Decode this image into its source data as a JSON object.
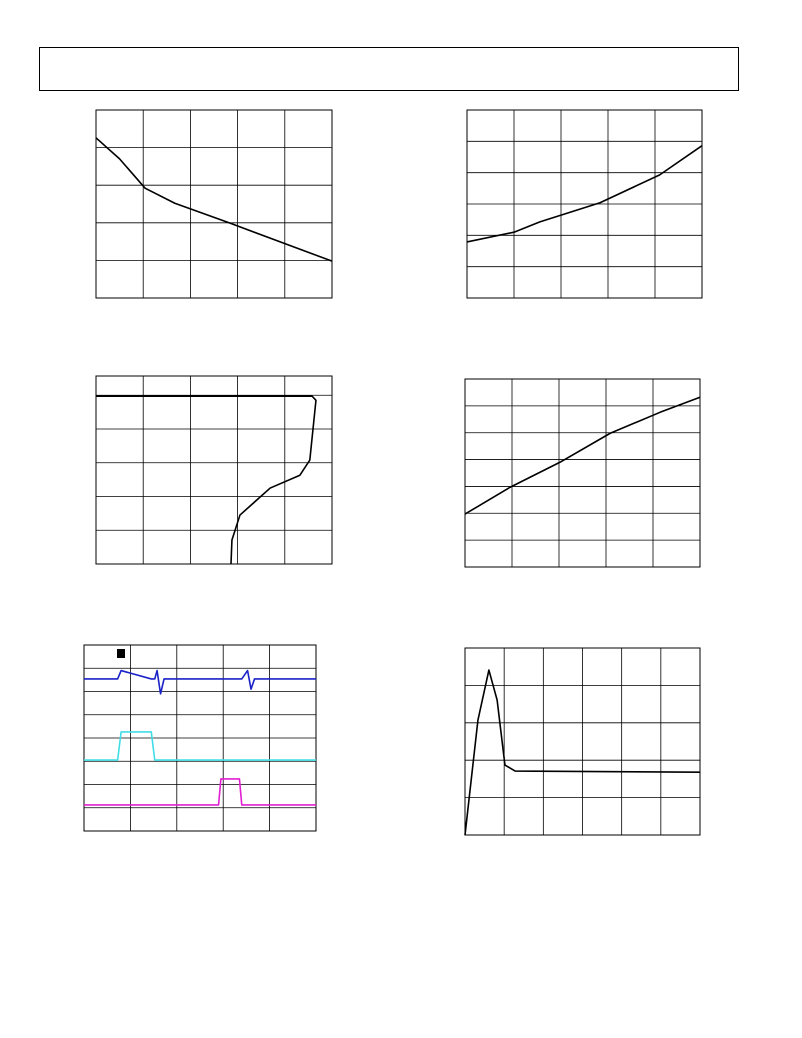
{
  "chart_data": [
    {
      "type": "line",
      "xlim": [
        0,
        5
      ],
      "ylim": [
        0,
        5
      ],
      "grid_step": [
        1,
        1
      ],
      "x": [
        0,
        0.5,
        1.04,
        1.67,
        2.84,
        5
      ],
      "series": [
        {
          "color": "#000000",
          "values": [
            4.26,
            3.7,
            2.92,
            2.52,
            1.99,
            0.98
          ]
        }
      ]
    },
    {
      "type": "line",
      "xlim": [
        0,
        5
      ],
      "ylim": [
        0,
        6
      ],
      "grid_step": [
        1,
        1
      ],
      "x": [
        0,
        1,
        1.55,
        2.83,
        4.1,
        5
      ],
      "series": [
        {
          "color": "#000000",
          "values": [
            1.79,
            2.1,
            2.43,
            3.04,
            3.93,
            4.86
          ]
        }
      ]
    },
    {
      "type": "line",
      "xlim": [
        0,
        5
      ],
      "ylim": [
        0,
        5.57
      ],
      "grid_step": [
        1,
        1
      ],
      "x": [
        0,
        4.58,
        4.66,
        4.53,
        4.32,
        3.69,
        3.05,
        2.88,
        2.86
      ],
      "series": [
        {
          "color": "#000000",
          "values": [
            4.97,
            4.97,
            4.85,
            3.08,
            2.63,
            2.25,
            1.45,
            0.71,
            0
          ]
        }
      ]
    },
    {
      "type": "line",
      "xlim": [
        0,
        5
      ],
      "ylim": [
        0,
        7
      ],
      "grid_step": [
        1,
        1
      ],
      "x": [
        0,
        0.96,
        2.02,
        3.09,
        4.15,
        5
      ],
      "series": [
        {
          "color": "#000000",
          "values": [
            1.97,
            2.97,
            3.9,
            4.98,
            5.76,
            6.32
          ]
        }
      ]
    },
    {
      "type": "line",
      "xlim": [
        0,
        10
      ],
      "ylim": [
        0,
        8
      ],
      "grid_step": [
        2,
        1
      ],
      "x": [
        0,
        1.45,
        1.6,
        2.9,
        3.05,
        3.15,
        3.3,
        3.45,
        5.8,
        5.9,
        6.7,
        6.8,
        7.05,
        7.2,
        7.35,
        10
      ],
      "series": [
        {
          "color": "#1a22c8",
          "values": [
            6.54,
            6.54,
            6.9,
            6.54,
            6.54,
            6.9,
            5.9,
            6.54,
            6.54,
            6.54,
            6.54,
            6.54,
            6.9,
            6.1,
            6.54,
            6.54
          ]
        },
        {
          "color": "#40dde6",
          "values": [
            3.05,
            3.05,
            4.26,
            4.26,
            3.05,
            3.05,
            3.05,
            3.05,
            3.05,
            3.05,
            3.05,
            3.05,
            3.05,
            3.05,
            3.05,
            3.05
          ]
        },
        {
          "color": "#e020d0",
          "values": [
            1.12,
            1.12,
            1.12,
            1.12,
            1.12,
            1.12,
            1.12,
            1.12,
            1.12,
            2.24,
            2.24,
            1.12,
            1.12,
            1.12,
            1.12,
            1.12
          ]
        }
      ]
    },
    {
      "type": "line",
      "xlim": [
        0,
        6
      ],
      "ylim": [
        0,
        5
      ],
      "grid_step": [
        1,
        1
      ],
      "x": [
        0,
        0.33,
        0.61,
        0.82,
        1.02,
        1.28,
        5.99
      ],
      "series": [
        {
          "color": "#000000",
          "values": [
            0,
            3.07,
            4.41,
            3.61,
            1.87,
            1.71,
            1.68
          ]
        }
      ]
    }
  ]
}
